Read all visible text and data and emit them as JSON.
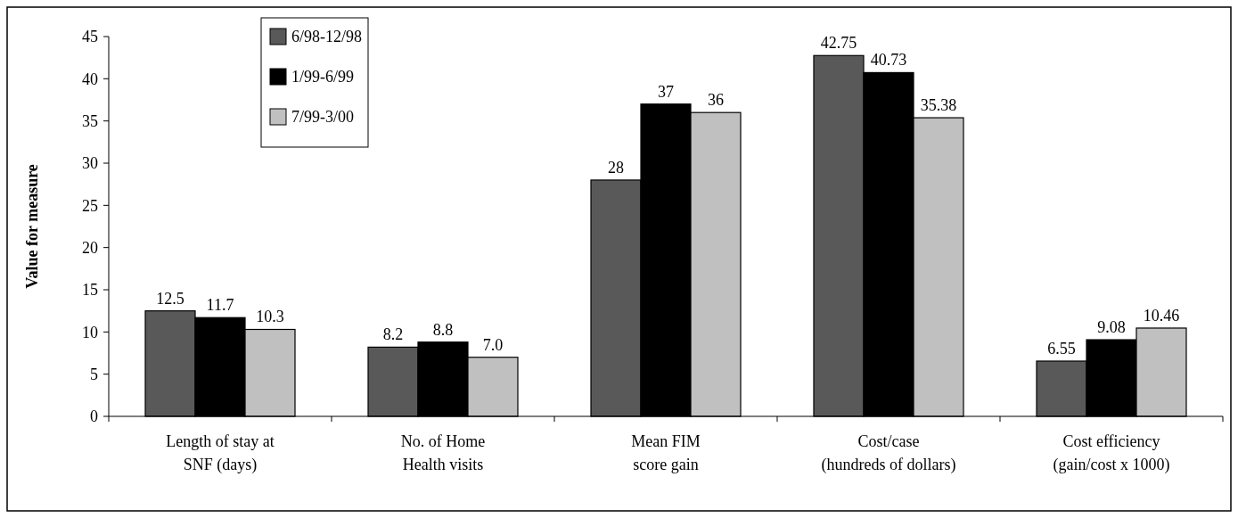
{
  "chart_data": {
    "type": "bar",
    "ylabel": "Value for measure",
    "categories": [
      "Length of stay at\nSNF (days)",
      "No. of Home\nHealth visits",
      "Mean FIM\nscore gain",
      "Cost/case\n(hundreds of dollars)",
      "Cost efficiency\n(gain/cost x 1000)"
    ],
    "series": [
      {
        "name": "6/98-12/98",
        "color": "#595959",
        "values": [
          12.5,
          8.2,
          28,
          42.75,
          6.55
        ],
        "value_labels": [
          "12.5",
          "8.2",
          "28",
          "42.75",
          "6.55"
        ]
      },
      {
        "name": "1/99-6/99",
        "color": "#000000",
        "values": [
          11.7,
          8.8,
          37,
          40.73,
          9.08
        ],
        "value_labels": [
          "11.7",
          "8.8",
          "37",
          "40.73",
          "9.08"
        ]
      },
      {
        "name": "7/99-3/00",
        "color": "#c0c0c0",
        "values": [
          10.3,
          7.0,
          36,
          35.38,
          10.46
        ],
        "value_labels": [
          "10.3",
          "7.0",
          "36",
          "35.38",
          "10.46"
        ]
      }
    ],
    "ylim": [
      0,
      45
    ],
    "yticks": [
      0,
      5,
      10,
      15,
      20,
      25,
      30,
      35,
      40,
      45
    ],
    "legend": "top left"
  }
}
